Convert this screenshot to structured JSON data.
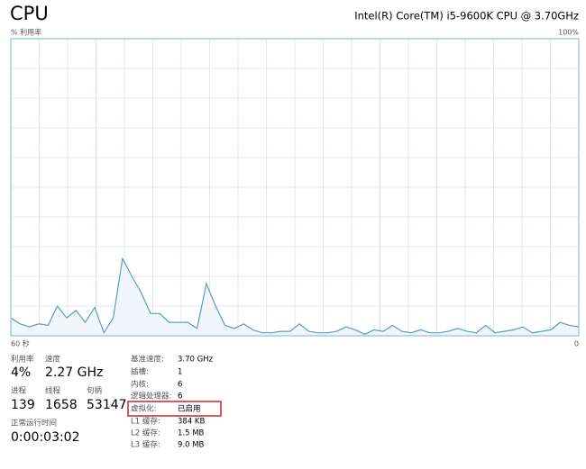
{
  "header": {
    "title": "CPU",
    "processor": "Intel(R) Core(TM) i5-9600K CPU @ 3.70GHz"
  },
  "chart_data": {
    "type": "area",
    "y_label": "% 利用率",
    "y_max_label": "100%",
    "x_left_label": "60 秒",
    "x_right_label": "0",
    "color": "#5b9bc6",
    "grid": true,
    "ylim": [
      0,
      100
    ],
    "yticks": [
      0,
      10,
      20,
      30,
      40,
      50,
      60,
      70,
      80,
      90,
      100
    ],
    "xlim": [
      60,
      0
    ],
    "xticks": [
      60,
      57,
      54,
      51,
      48,
      45,
      42,
      39,
      36,
      33,
      30,
      27,
      24,
      21,
      18,
      15,
      12,
      9,
      6,
      3,
      0
    ],
    "values": [
      6,
      4,
      3,
      4,
      3.5,
      10,
      6,
      8.5,
      4.5,
      9.5,
      1,
      6,
      26,
      20,
      14.5,
      7.5,
      7.5,
      4.5,
      4.5,
      4.5,
      2.5,
      17.5,
      10,
      3.5,
      2.5,
      4,
      2,
      1,
      1,
      1.5,
      1.5,
      4,
      1.5,
      1,
      1,
      1.5,
      3,
      2,
      0.5,
      2,
      1.5,
      3.5,
      1.5,
      1,
      2,
      1,
      1,
      1.5,
      2.5,
      1.5,
      1,
      3.5,
      1,
      1.5,
      2,
      3,
      1,
      1.5,
      2,
      4.5,
      3.5,
      3
    ]
  },
  "stats": {
    "utilization": {
      "label": "利用率",
      "value": "4%"
    },
    "speed": {
      "label": "速度",
      "value": "2.27 GHz"
    },
    "processes": {
      "label": "进程",
      "value": "139"
    },
    "threads": {
      "label": "线程",
      "value": "1658"
    },
    "handles": {
      "label": "句柄",
      "value": "53147"
    },
    "uptime": {
      "label": "正常运行时间",
      "value": "0:00:03:02"
    }
  },
  "details": [
    {
      "label": "基准速度:",
      "value": "3.70 GHz"
    },
    {
      "label": "插槽:",
      "value": "1"
    },
    {
      "label": "内核:",
      "value": "6"
    },
    {
      "label": "逻辑处理器:",
      "value": "6"
    },
    {
      "label": "虚拟化:",
      "value": "已启用"
    },
    {
      "label": "L1 缓存:",
      "value": "384 KB"
    },
    {
      "label": "L2 缓存:",
      "value": "1.5 MB"
    },
    {
      "label": "L3 缓存:",
      "value": "9.0 MB"
    }
  ]
}
